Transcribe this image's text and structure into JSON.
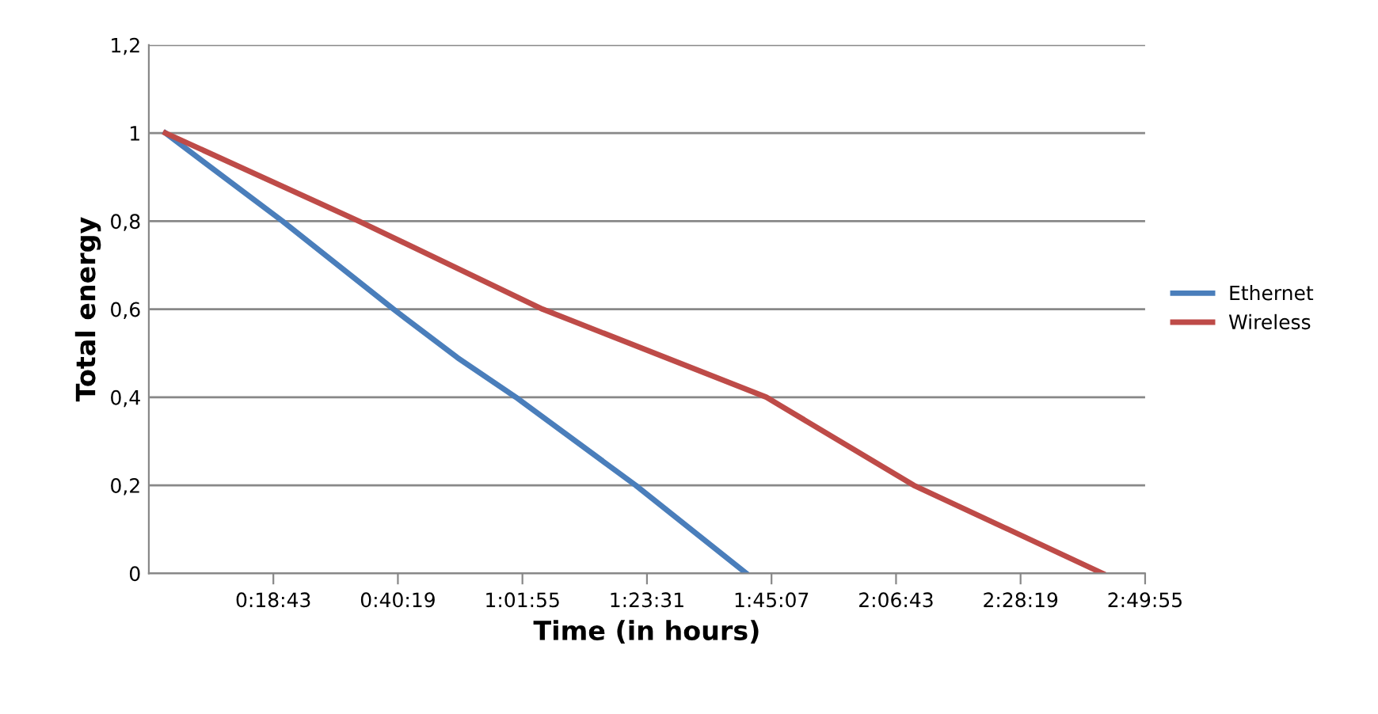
{
  "chart_data": {
    "type": "line",
    "xlabel": "Time (in hours)",
    "ylabel": "Total energy",
    "xlim": [
      -0.0481,
      2.8319
    ],
    "xticks": [
      {
        "value": 0.3119,
        "label": "0:18:43"
      },
      {
        "value": 0.6719,
        "label": "0:40:19"
      },
      {
        "value": 1.0319,
        "label": "1:01:55"
      },
      {
        "value": 1.3919,
        "label": "1:23:31"
      },
      {
        "value": 1.7519,
        "label": "1:45:07"
      },
      {
        "value": 2.1119,
        "label": "2:06:43"
      },
      {
        "value": 2.4719,
        "label": "2:28:19"
      },
      {
        "value": 2.8319,
        "label": "2:49:55"
      }
    ],
    "ylim": [
      0,
      1.2
    ],
    "yticks": [
      0,
      {
        "value": 0.2,
        "label": "0,2"
      },
      {
        "value": 0.4,
        "label": "0,4"
      },
      {
        "value": 0.6,
        "label": "0,6"
      },
      {
        "value": 0.8,
        "label": "0,8"
      },
      1,
      {
        "value": 1.2,
        "label": "1,2"
      }
    ],
    "grid": "y",
    "legend": "right",
    "marker": "none",
    "line_style": "solid",
    "series": [
      {
        "name": "Ethernet",
        "color": "#4a7ebb",
        "x": [
          0,
          0.338,
          0.659,
          0.844,
          1.013,
          1.359,
          1.679
        ],
        "values": [
          1,
          0.8,
          0.6,
          0.49,
          0.4,
          0.2,
          0
        ]
      },
      {
        "name": "Wireless",
        "color": "#be4b48",
        "x": [
          0,
          0.559,
          1.09,
          1.737,
          2.163,
          2.709
        ],
        "values": [
          1,
          0.8,
          0.6,
          0.4,
          0.2,
          0
        ]
      }
    ]
  }
}
